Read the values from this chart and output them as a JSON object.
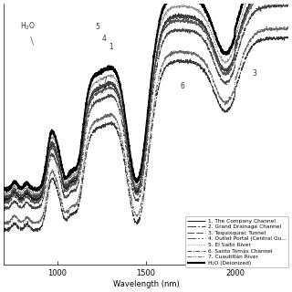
{
  "title": "",
  "xlabel": "Wavelength (nm)",
  "ylabel": "",
  "xlim": [
    700,
    2300
  ],
  "ylim": [
    -0.35,
    0.55
  ],
  "x_ticks": [
    1000,
    1500,
    2000
  ],
  "background_color": "#ffffff",
  "legend_labels": [
    "1. The Company Channel",
    "2. Grand Drainage Channel",
    "3. Tequixquiac Tunnel",
    "4. Outlet Portal (Central Ou...",
    "5. El Salto River",
    "6. Santo Tomás Channel",
    "7. Cuautitlán River",
    "H₂O (Deionized)"
  ],
  "line_styles": [
    "solid",
    "longdash_dot",
    "longdash",
    "longdash_dot_dot",
    "dotted",
    "dash_dot",
    "dash_dot_dot",
    "solid_thick"
  ],
  "line_colors": [
    "#1a1a1a",
    "#333333",
    "#444444",
    "#555555",
    "#888888",
    "#444444",
    "#666666",
    "#000000"
  ],
  "line_widths": [
    0.7,
    0.7,
    0.7,
    0.7,
    0.6,
    0.7,
    0.7,
    1.5
  ]
}
